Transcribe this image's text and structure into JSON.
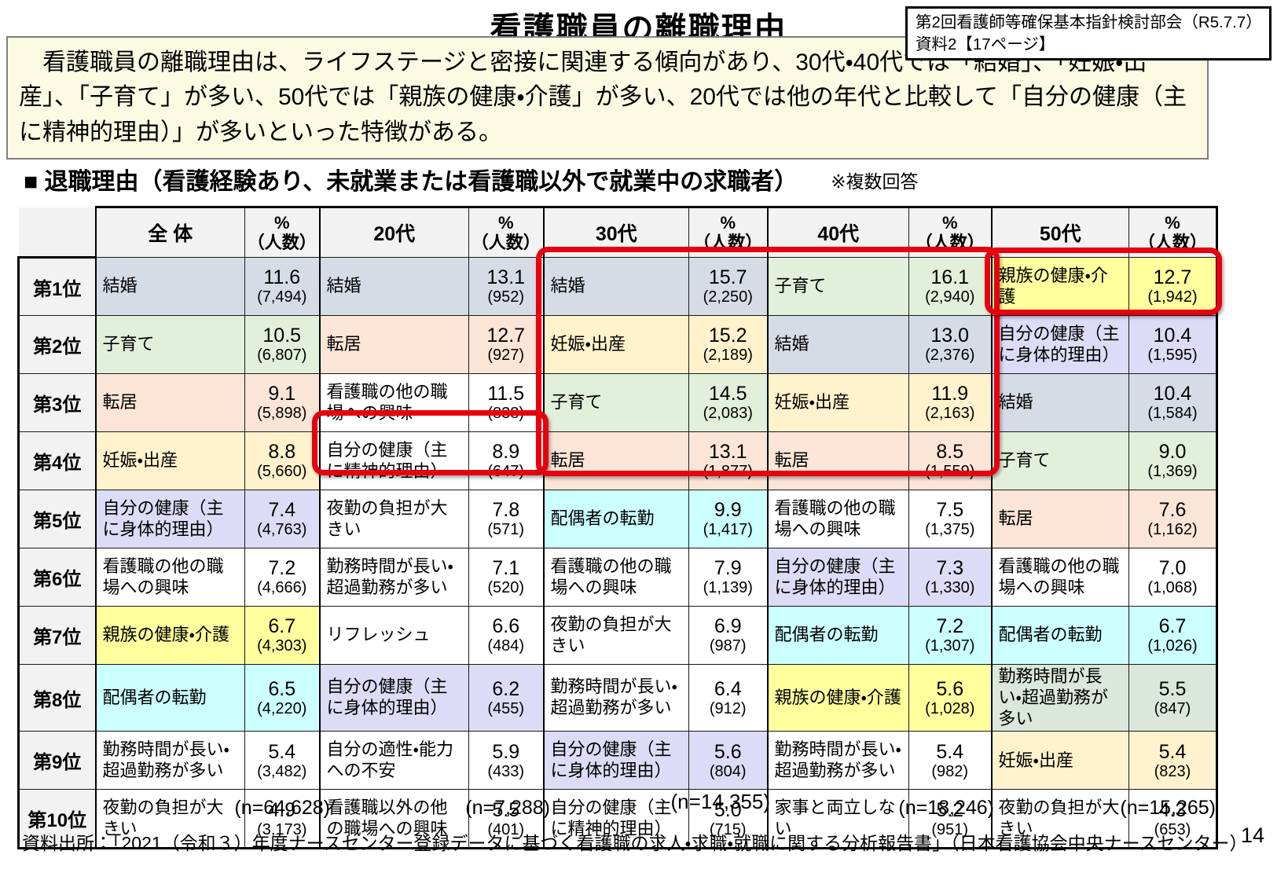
{
  "header": {
    "title": "看護職員の離職理由",
    "ref_line1": "第2回看護師等確保基本指針検討部会（R5.7.7）",
    "ref_line2": "資料2【17ページ】"
  },
  "summary": {
    "text": "　看護職員の離職理由は、ライフステージと密接に関連する傾向があり、30代・40代では「結婚」、「妊娠・出産」、「子育て」が多い、50代では「親族の健康・介護」が多い、20代では他の年代と比較して「自分の健康（主に精神的理由）」が多いといった特徴がある。"
  },
  "section": {
    "heading": "■ 退職理由（看護経験あり、未就業または看護職以外で就業中の求職者）",
    "note": "※複数回答"
  },
  "footer": {
    "source": "資料出所：「2021（令和３）年度ナースセンター登録データに基づく看護職の求人・求職・就職に関する分析報告書」（日本看護協会中央ナースセンター）",
    "page_number": "14"
  },
  "accent_red": "#e7000e",
  "cell_colors": {
    "marriage": "#d6dce5",
    "childcare": "#e2efda",
    "moving": "#fbe5d6",
    "pregnancy": "#fff2cc",
    "own_health_physical": "#dcdcf6",
    "family_health_care": "#ffff9e",
    "spouse_transfer": "#ccffff",
    "tinted_green": "#dbe7da",
    "plain": "#ffffff"
  },
  "table": {
    "pct_header_line1": "%",
    "pct_header_line2": "（人数）",
    "rank_labels": [
      "第1位",
      "第2位",
      "第3位",
      "第4位",
      "第5位",
      "第6位",
      "第7位",
      "第8位",
      "第9位",
      "第10位"
    ],
    "groups": [
      {
        "key": "overall",
        "label": "全 体",
        "n": "(n=64,628)",
        "rows": [
          {
            "reason": "結婚",
            "pct": "11.6",
            "count": "(7,494)",
            "color": "marriage"
          },
          {
            "reason": "子育て",
            "pct": "10.5",
            "count": "(6,807)",
            "color": "childcare"
          },
          {
            "reason": "転居",
            "pct": "9.1",
            "count": "(5,898)",
            "color": "moving"
          },
          {
            "reason": "妊娠・出産",
            "pct": "8.8",
            "count": "(5,660)",
            "color": "pregnancy"
          },
          {
            "reason": "自分の健康（主に身体的理由）",
            "pct": "7.4",
            "count": "(4,763)",
            "color": "own_health_physical"
          },
          {
            "reason": "看護職の他の職場への興味",
            "pct": "7.2",
            "count": "(4,666)",
            "color": "plain"
          },
          {
            "reason": "親族の健康・介護",
            "pct": "6.7",
            "count": "(4,303)",
            "color": "family_health_care"
          },
          {
            "reason": "配偶者の転勤",
            "pct": "6.5",
            "count": "(4,220)",
            "color": "spouse_transfer"
          },
          {
            "reason": "勤務時間が長い・超過勤務が多い",
            "pct": "5.4",
            "count": "(3,482)",
            "color": "plain"
          },
          {
            "reason": "夜勤の負担が大きい",
            "pct": "4.9",
            "count": "(3,173)",
            "color": "plain"
          }
        ]
      },
      {
        "key": "20s",
        "label": "20代",
        "n": "(n=7,288)",
        "rows": [
          {
            "reason": "結婚",
            "pct": "13.1",
            "count": "(952)",
            "color": "marriage"
          },
          {
            "reason": "転居",
            "pct": "12.7",
            "count": "(927)",
            "color": "moving"
          },
          {
            "reason": "看護職の他の職場への興味",
            "pct": "11.5",
            "count": "(838)",
            "color": "plain"
          },
          {
            "reason": "自分の健康（主に精神的理由）",
            "pct": "8.9",
            "count": "(647)",
            "color": "plain"
          },
          {
            "reason": "夜勤の負担が大きい",
            "pct": "7.8",
            "count": "(571)",
            "color": "plain"
          },
          {
            "reason": "勤務時間が長い・超過勤務が多い",
            "pct": "7.1",
            "count": "(520)",
            "color": "plain"
          },
          {
            "reason": "リフレッシュ",
            "pct": "6.6",
            "count": "(484)",
            "color": "plain"
          },
          {
            "reason": "自分の健康（主に身体的理由）",
            "pct": "6.2",
            "count": "(455)",
            "color": "own_health_physical"
          },
          {
            "reason": "自分の適性・能力への不安",
            "pct": "5.9",
            "count": "(433)",
            "color": "plain"
          },
          {
            "reason": "看護職以外の他の職場への興味",
            "pct": "5.5",
            "count": "(401)",
            "color": "plain"
          }
        ]
      },
      {
        "key": "30s",
        "label": "30代",
        "n": "(n=14,355)",
        "rows": [
          {
            "reason": "結婚",
            "pct": "15.7",
            "count": "(2,250)",
            "color": "marriage"
          },
          {
            "reason": "妊娠・出産",
            "pct": "15.2",
            "count": "(2,189)",
            "color": "pregnancy"
          },
          {
            "reason": "子育て",
            "pct": "14.5",
            "count": "(2,083)",
            "color": "childcare"
          },
          {
            "reason": "転居",
            "pct": "13.1",
            "count": "(1,877)",
            "color": "moving"
          },
          {
            "reason": "配偶者の転勤",
            "pct": "9.9",
            "count": "(1,417)",
            "color": "spouse_transfer"
          },
          {
            "reason": "看護職の他の職場への興味",
            "pct": "7.9",
            "count": "(1,139)",
            "color": "plain"
          },
          {
            "reason": "夜勤の負担が大きい",
            "pct": "6.9",
            "count": "(987)",
            "color": "plain"
          },
          {
            "reason": "勤務時間が長い・超過勤務が多い",
            "pct": "6.4",
            "count": "(912)",
            "color": "plain"
          },
          {
            "reason": "自分の健康（主に身体的理由）",
            "pct": "5.6",
            "count": "(804)",
            "color": "own_health_physical"
          },
          {
            "reason": "自分の健康（主に精神的理由）",
            "pct": "5.0",
            "count": "(715)",
            "color": "plain"
          }
        ]
      },
      {
        "key": "40s",
        "label": "40代",
        "n": "(n=18,246)",
        "rows": [
          {
            "reason": "子育て",
            "pct": "16.1",
            "count": "(2,940)",
            "color": "childcare"
          },
          {
            "reason": "結婚",
            "pct": "13.0",
            "count": "(2,376)",
            "color": "marriage"
          },
          {
            "reason": "妊娠・出産",
            "pct": "11.9",
            "count": "(2,163)",
            "color": "pregnancy"
          },
          {
            "reason": "転居",
            "pct": "8.5",
            "count": "(1,559)",
            "color": "moving"
          },
          {
            "reason": "看護職の他の職場への興味",
            "pct": "7.5",
            "count": "(1,375)",
            "color": "plain"
          },
          {
            "reason": "自分の健康（主に身体的理由）",
            "pct": "7.3",
            "count": "(1,330)",
            "color": "own_health_physical"
          },
          {
            "reason": "配偶者の転勤",
            "pct": "7.2",
            "count": "(1,307)",
            "color": "spouse_transfer"
          },
          {
            "reason": "親族の健康・介護",
            "pct": "5.6",
            "count": "(1,028)",
            "color": "family_health_care"
          },
          {
            "reason": "勤務時間が長い・超過勤務が多い",
            "pct": "5.4",
            "count": "(982)",
            "color": "plain"
          },
          {
            "reason": "家事と両立しない",
            "pct": "5.2",
            "count": "(951)",
            "color": "plain"
          }
        ]
      },
      {
        "key": "50s",
        "label": "50代",
        "n": "(n=15,265)",
        "rows": [
          {
            "reason": "親族の健康・介護",
            "pct": "12.7",
            "count": "(1,942)",
            "color": "family_health_care"
          },
          {
            "reason": "自分の健康（主に身体的理由）",
            "pct": "10.4",
            "count": "(1,595)",
            "color": "own_health_physical"
          },
          {
            "reason": "結婚",
            "pct": "10.4",
            "count": "(1,584)",
            "color": "marriage"
          },
          {
            "reason": "子育て",
            "pct": "9.0",
            "count": "(1,369)",
            "color": "childcare"
          },
          {
            "reason": "転居",
            "pct": "7.6",
            "count": "(1,162)",
            "color": "moving"
          },
          {
            "reason": "看護職の他の職場への興味",
            "pct": "7.0",
            "count": "(1,068)",
            "color": "plain"
          },
          {
            "reason": "配偶者の転勤",
            "pct": "6.7",
            "count": "(1,026)",
            "color": "spouse_transfer"
          },
          {
            "reason": "勤務時間が長い・超過勤務が多い",
            "pct": "5.5",
            "count": "(847)",
            "color": "tinted_green"
          },
          {
            "reason": "妊娠・出産",
            "pct": "5.4",
            "count": "(823)",
            "color": "pregnancy"
          },
          {
            "reason": "夜勤の負担が大きい",
            "pct": "4.3",
            "count": "(653)",
            "color": "plain"
          }
        ]
      }
    ]
  }
}
